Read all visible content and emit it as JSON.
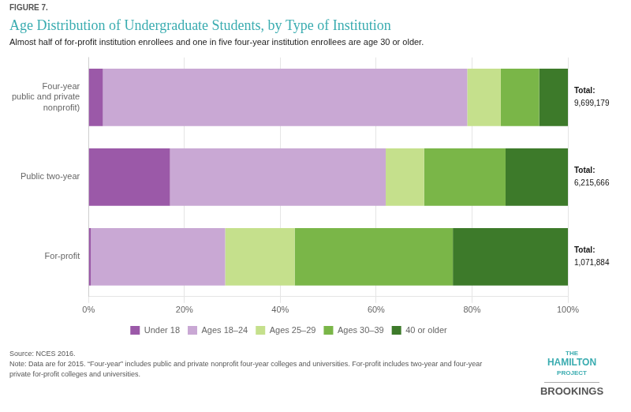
{
  "chart_data": {
    "type": "bar",
    "orientation": "horizontal",
    "stacked": true,
    "figure_label": "FIGURE 7.",
    "title": "Age Distribution of Undergraduate Students, by Type of Institution",
    "subtitle": "Almost half of for-profit institution enrollees and one in five four-year institution enrollees are age 30 or older.",
    "categories": [
      "Four-year\npublic and private\nnonprofit)",
      "Public two-year",
      "For-profit"
    ],
    "series": [
      {
        "name": "Under 18",
        "color": "#9b59a8",
        "values": [
          3.0,
          17.0,
          0.5
        ]
      },
      {
        "name": "Ages 18–24",
        "color": "#c9a8d4",
        "values": [
          76.0,
          45.0,
          28.0
        ]
      },
      {
        "name": "Ages 25–29",
        "color": "#c5e08c",
        "values": [
          7.0,
          8.0,
          14.5
        ]
      },
      {
        "name": "Ages 30–39",
        "color": "#7ab648",
        "values": [
          8.0,
          17.0,
          33.0
        ]
      },
      {
        "name": "40 or older",
        "color": "#3d7a2a",
        "values": [
          6.0,
          13.0,
          24.0
        ]
      }
    ],
    "totals": {
      "label": "Total:",
      "values": [
        9699179,
        6215666,
        1071884
      ],
      "value_labels": [
        "9,699,179",
        "6,215,666",
        "1,071,884"
      ]
    },
    "xlim": [
      0,
      100
    ],
    "xticks": [
      {
        "value": 0,
        "label": "0%"
      },
      {
        "value": 20,
        "label": "20%"
      },
      {
        "value": 40,
        "label": "40%"
      },
      {
        "value": 60,
        "label": "60%"
      },
      {
        "value": 80,
        "label": "80%"
      },
      {
        "value": 100,
        "label": "100%"
      }
    ],
    "grid": true,
    "legend": "bottom",
    "source_note": "Source: NCES 2016.\nNote: Data are for 2015. “Four-year” includes public and private nonprofit four-year colleges and universities. For-profit includes two-year and four-year\nprivate for-profit colleges and universities.",
    "branding": [
      "THE",
      "HAMILTON",
      "PROJECT",
      "BROOKINGS"
    ]
  }
}
